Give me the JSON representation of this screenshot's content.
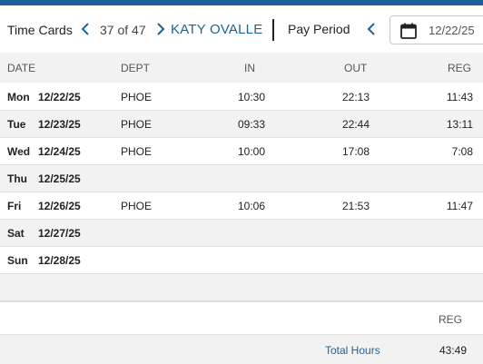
{
  "toolbar": {
    "title": "Time Cards",
    "counter": "37 of 47",
    "employee": "KATY OVALLE",
    "pay_period_label": "Pay Period",
    "date_value": "12/22/25",
    "icons": {
      "prev": "chevron-left-icon",
      "next": "chevron-right-icon",
      "calendar": "calendar-icon"
    },
    "accent_color": "#1d6396"
  },
  "table": {
    "headers": {
      "date": "DATE",
      "dept": "DEPT",
      "in": "IN",
      "out": "OUT",
      "reg": "REG"
    },
    "rows": [
      {
        "day": "Mon",
        "date": "12/22/25",
        "dept": "PHOE",
        "in": "10:30",
        "out": "22:13",
        "reg": "11:43"
      },
      {
        "day": "Tue",
        "date": "12/23/25",
        "dept": "PHOE",
        "in": "09:33",
        "out": "22:44",
        "reg": "13:11"
      },
      {
        "day": "Wed",
        "date": "12/24/25",
        "dept": "PHOE",
        "in": "10:00",
        "out": "17:08",
        "reg": "7:08"
      },
      {
        "day": "Thu",
        "date": "12/25/25",
        "dept": "",
        "in": "",
        "out": "",
        "reg": ""
      },
      {
        "day": "Fri",
        "date": "12/26/25",
        "dept": "PHOE",
        "in": "10:06",
        "out": "21:53",
        "reg": "11:47"
      },
      {
        "day": "Sat",
        "date": "12/27/25",
        "dept": "",
        "in": "",
        "out": "",
        "reg": ""
      },
      {
        "day": "Sun",
        "date": "12/28/25",
        "dept": "",
        "in": "",
        "out": "",
        "reg": ""
      }
    ]
  },
  "summary": {
    "reg_header": "REG",
    "total_label": "Total Hours",
    "total_value": "43:49"
  }
}
